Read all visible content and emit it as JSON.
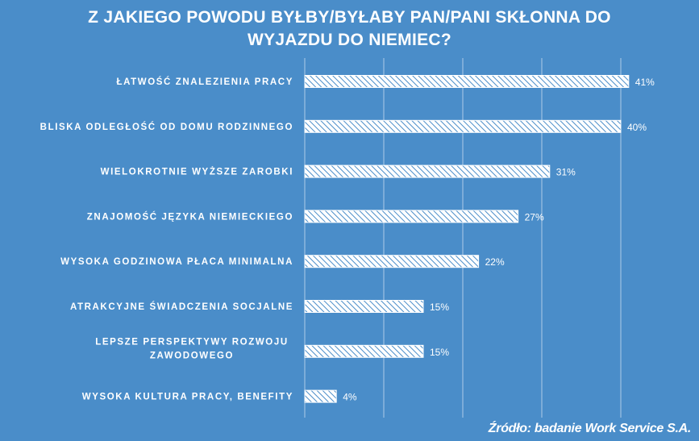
{
  "title_lines": [
    "Z JAKIEGO  POWODU  BYŁBY/BYŁABY  PAN/PANI  SKŁONNA  DO",
    "WYJAZDU  DO  NIEMIEC?"
  ],
  "source": "Źródło: badanie Work Service S.A.",
  "colors": {
    "background": "#4a8dc9",
    "bar_fill": "#ffffff",
    "bar_hatch": "#4a8dc9",
    "text": "#ffffff",
    "grid": "#ffffff"
  },
  "chart_data": {
    "type": "bar",
    "orientation": "horizontal",
    "categories": [
      [
        "ŁATWOŚĆ ZNALEZIENIA PRACY"
      ],
      [
        "BLISKA ODLEGŁOŚĆ OD DOMU RODZINNEGO"
      ],
      [
        "WIELOKROTNIE  WYŻSZE ZAROBKI"
      ],
      [
        "ZNAJOMOŚĆ JĘZYKA NIEMIECKIEGO"
      ],
      [
        "WYSOKA GODZINOWA PŁACA MINIMALNA"
      ],
      [
        "ATRAKCYJNE ŚWIADCZENIA SOCJALNE"
      ],
      [
        "LEPSZE PERSPEKTYWY  ROZWOJU",
        "ZAWODOWEGO"
      ],
      [
        "WYSOKA KULTURA PRACY, BENEFITY"
      ]
    ],
    "values": [
      41,
      40,
      31,
      27,
      22,
      15,
      15,
      4
    ],
    "data_labels": [
      "41%",
      "40%",
      "31%",
      "27%",
      "22%",
      "15%",
      "15%",
      "4%"
    ],
    "xlim": [
      0,
      50
    ],
    "gridlines": [
      0,
      10,
      20,
      30,
      40
    ],
    "grid": true,
    "fill_pattern": "diagonal-hatch"
  }
}
